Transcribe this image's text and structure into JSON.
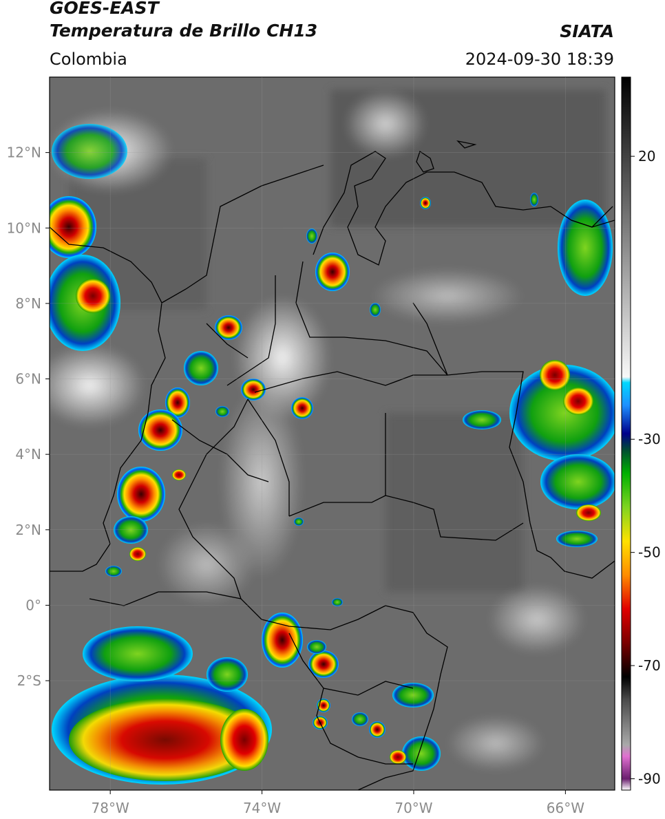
{
  "header": {
    "satellite": "GOES-EAST",
    "product": "Temperatura de Brillo CH13",
    "region": "Colombia",
    "agency": "SIATA",
    "datetime": "2024-09-30 18:39"
  },
  "axes": {
    "lat_ticks": [
      {
        "value": 12,
        "label": "12°N"
      },
      {
        "value": 10,
        "label": "10°N"
      },
      {
        "value": 8,
        "label": "8°N"
      },
      {
        "value": 6,
        "label": "6°N"
      },
      {
        "value": 4,
        "label": "4°N"
      },
      {
        "value": 2,
        "label": "2°N"
      },
      {
        "value": 0,
        "label": "0°"
      },
      {
        "value": -2,
        "label": "2°S"
      }
    ],
    "lon_ticks": [
      {
        "value": -78,
        "label": "78°W"
      },
      {
        "value": -74,
        "label": "74°W"
      },
      {
        "value": -70,
        "label": "70°W"
      },
      {
        "value": -66,
        "label": "66°W"
      }
    ],
    "lon_range": [
      -79.6,
      -64.7
    ],
    "lat_range": [
      -4.9,
      14.0
    ]
  },
  "colorbar": {
    "range": [
      -92,
      34
    ],
    "ticks": [
      {
        "value": 20,
        "label": "20"
      },
      {
        "value": -30,
        "label": "-30"
      },
      {
        "value": -50,
        "label": "-50"
      },
      {
        "value": -70,
        "label": "-70"
      },
      {
        "value": -90,
        "label": "-90"
      }
    ],
    "stops": [
      {
        "value": -92,
        "color": "#ffffff"
      },
      {
        "value": -90,
        "color": "#6a1f6e"
      },
      {
        "value": -86,
        "color": "#e070d0"
      },
      {
        "value": -84,
        "color": "#a9a9a9"
      },
      {
        "value": -76,
        "color": "#4a4a4a"
      },
      {
        "value": -72,
        "color": "#000000"
      },
      {
        "value": -66,
        "color": "#7a0000"
      },
      {
        "value": -60,
        "color": "#e00000"
      },
      {
        "value": -54,
        "color": "#ff8c00"
      },
      {
        "value": -48,
        "color": "#ffe100"
      },
      {
        "value": -42,
        "color": "#7fd420"
      },
      {
        "value": -36,
        "color": "#00b000"
      },
      {
        "value": -32,
        "color": "#004f30"
      },
      {
        "value": -29,
        "color": "#00008b"
      },
      {
        "value": -24,
        "color": "#1e90ff"
      },
      {
        "value": -20,
        "color": "#00d8ff"
      },
      {
        "value": -19,
        "color": "#f8f8f8"
      },
      {
        "value": 34,
        "color": "#000000"
      }
    ]
  }
}
